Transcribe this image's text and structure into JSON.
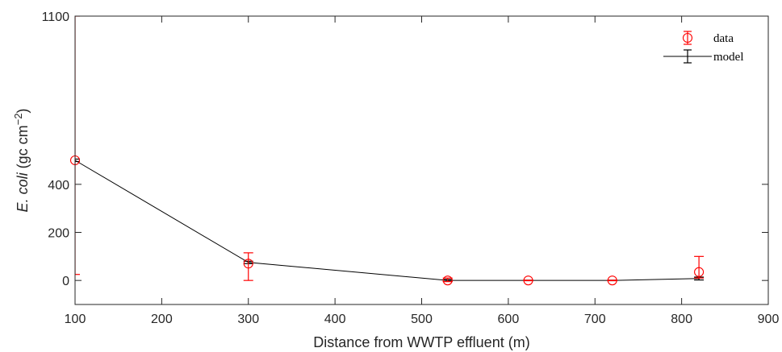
{
  "chart_data": {
    "type": "line",
    "xlabel": "Distance from WWTP effluent (m)",
    "ylabel_parts": [
      "E. coli",
      " (gc cm",
      "−2",
      ")"
    ],
    "xlim": [
      100,
      900
    ],
    "ylim": [
      -100,
      1100
    ],
    "xticks": [
      100,
      200,
      300,
      400,
      500,
      600,
      700,
      800,
      900
    ],
    "yticks": [
      0,
      200,
      400,
      1100
    ],
    "grid": false,
    "legend": {
      "placement": "top-right",
      "entries": [
        "data",
        "model"
      ]
    },
    "colors": {
      "data": "#ff0000",
      "model": "#000000",
      "axis": "#262626"
    },
    "series": [
      {
        "name": "data",
        "style": "markers-with-errorbars",
        "x": [
          100,
          300,
          530,
          623,
          720,
          820
        ],
        "y": [
          500,
          70,
          0,
          0,
          0,
          35
        ],
        "err_low": [
          25,
          0,
          -5,
          -1,
          -1,
          10
        ],
        "err_high": [
          1100,
          115,
          10,
          1,
          1,
          100
        ]
      },
      {
        "name": "model",
        "style": "line-with-errorbars",
        "x": [
          100,
          300,
          530,
          623,
          720,
          820
        ],
        "y": [
          500,
          75,
          0,
          0,
          0,
          8
        ],
        "err_low": [
          495,
          70,
          -4,
          -1,
          -1,
          2
        ],
        "err_high": [
          505,
          80,
          4,
          1,
          1,
          14
        ]
      }
    ]
  }
}
